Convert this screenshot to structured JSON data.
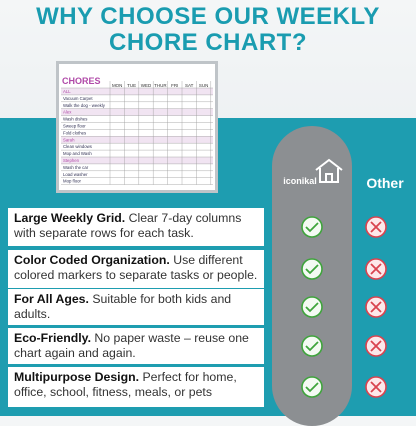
{
  "title_lines": [
    "WHY CHOOSE OUR WEEKLY",
    "CHORE CHART?"
  ],
  "chore_chart": {
    "title": "CHORES",
    "days": [
      "MON",
      "TUE",
      "WED",
      "THUR",
      "FRI",
      "SAT",
      "SUN"
    ],
    "rows": [
      {
        "label": "ALL",
        "header": true
      },
      {
        "label": "Vacuum Carpet"
      },
      {
        "label": "Walk the dog - weekly"
      },
      {
        "label": "Alex",
        "header": true
      },
      {
        "label": "Wash dishes"
      },
      {
        "label": "Sweep floor"
      },
      {
        "label": "Fold clothes"
      },
      {
        "label": "Sarah",
        "header": true
      },
      {
        "label": "Clean windows"
      },
      {
        "label": "Mop and Wash"
      },
      {
        "label": "Stephen",
        "header": true
      },
      {
        "label": "Wash the car"
      },
      {
        "label": "Load washer"
      },
      {
        "label": "Mop floor"
      }
    ]
  },
  "columns": {
    "brand": "iconikal",
    "other": "Other"
  },
  "features": [
    {
      "lead": "Large Weekly Grid.",
      "text": "Clear 7-day columns with separate rows for each task."
    },
    {
      "lead": "Color Coded Organization.",
      "text": "Use different colored markers to separate tasks or people."
    },
    {
      "lead": "For All Ages.",
      "text": "Suitable for both kids and adults."
    },
    {
      "lead": "Eco-Friendly.",
      "text": "No paper waste – reuse one chart again and again."
    },
    {
      "lead": "Multipurpose Design.",
      "text": "Perfect for home, office, school, fitness, meals, or pets"
    }
  ]
}
